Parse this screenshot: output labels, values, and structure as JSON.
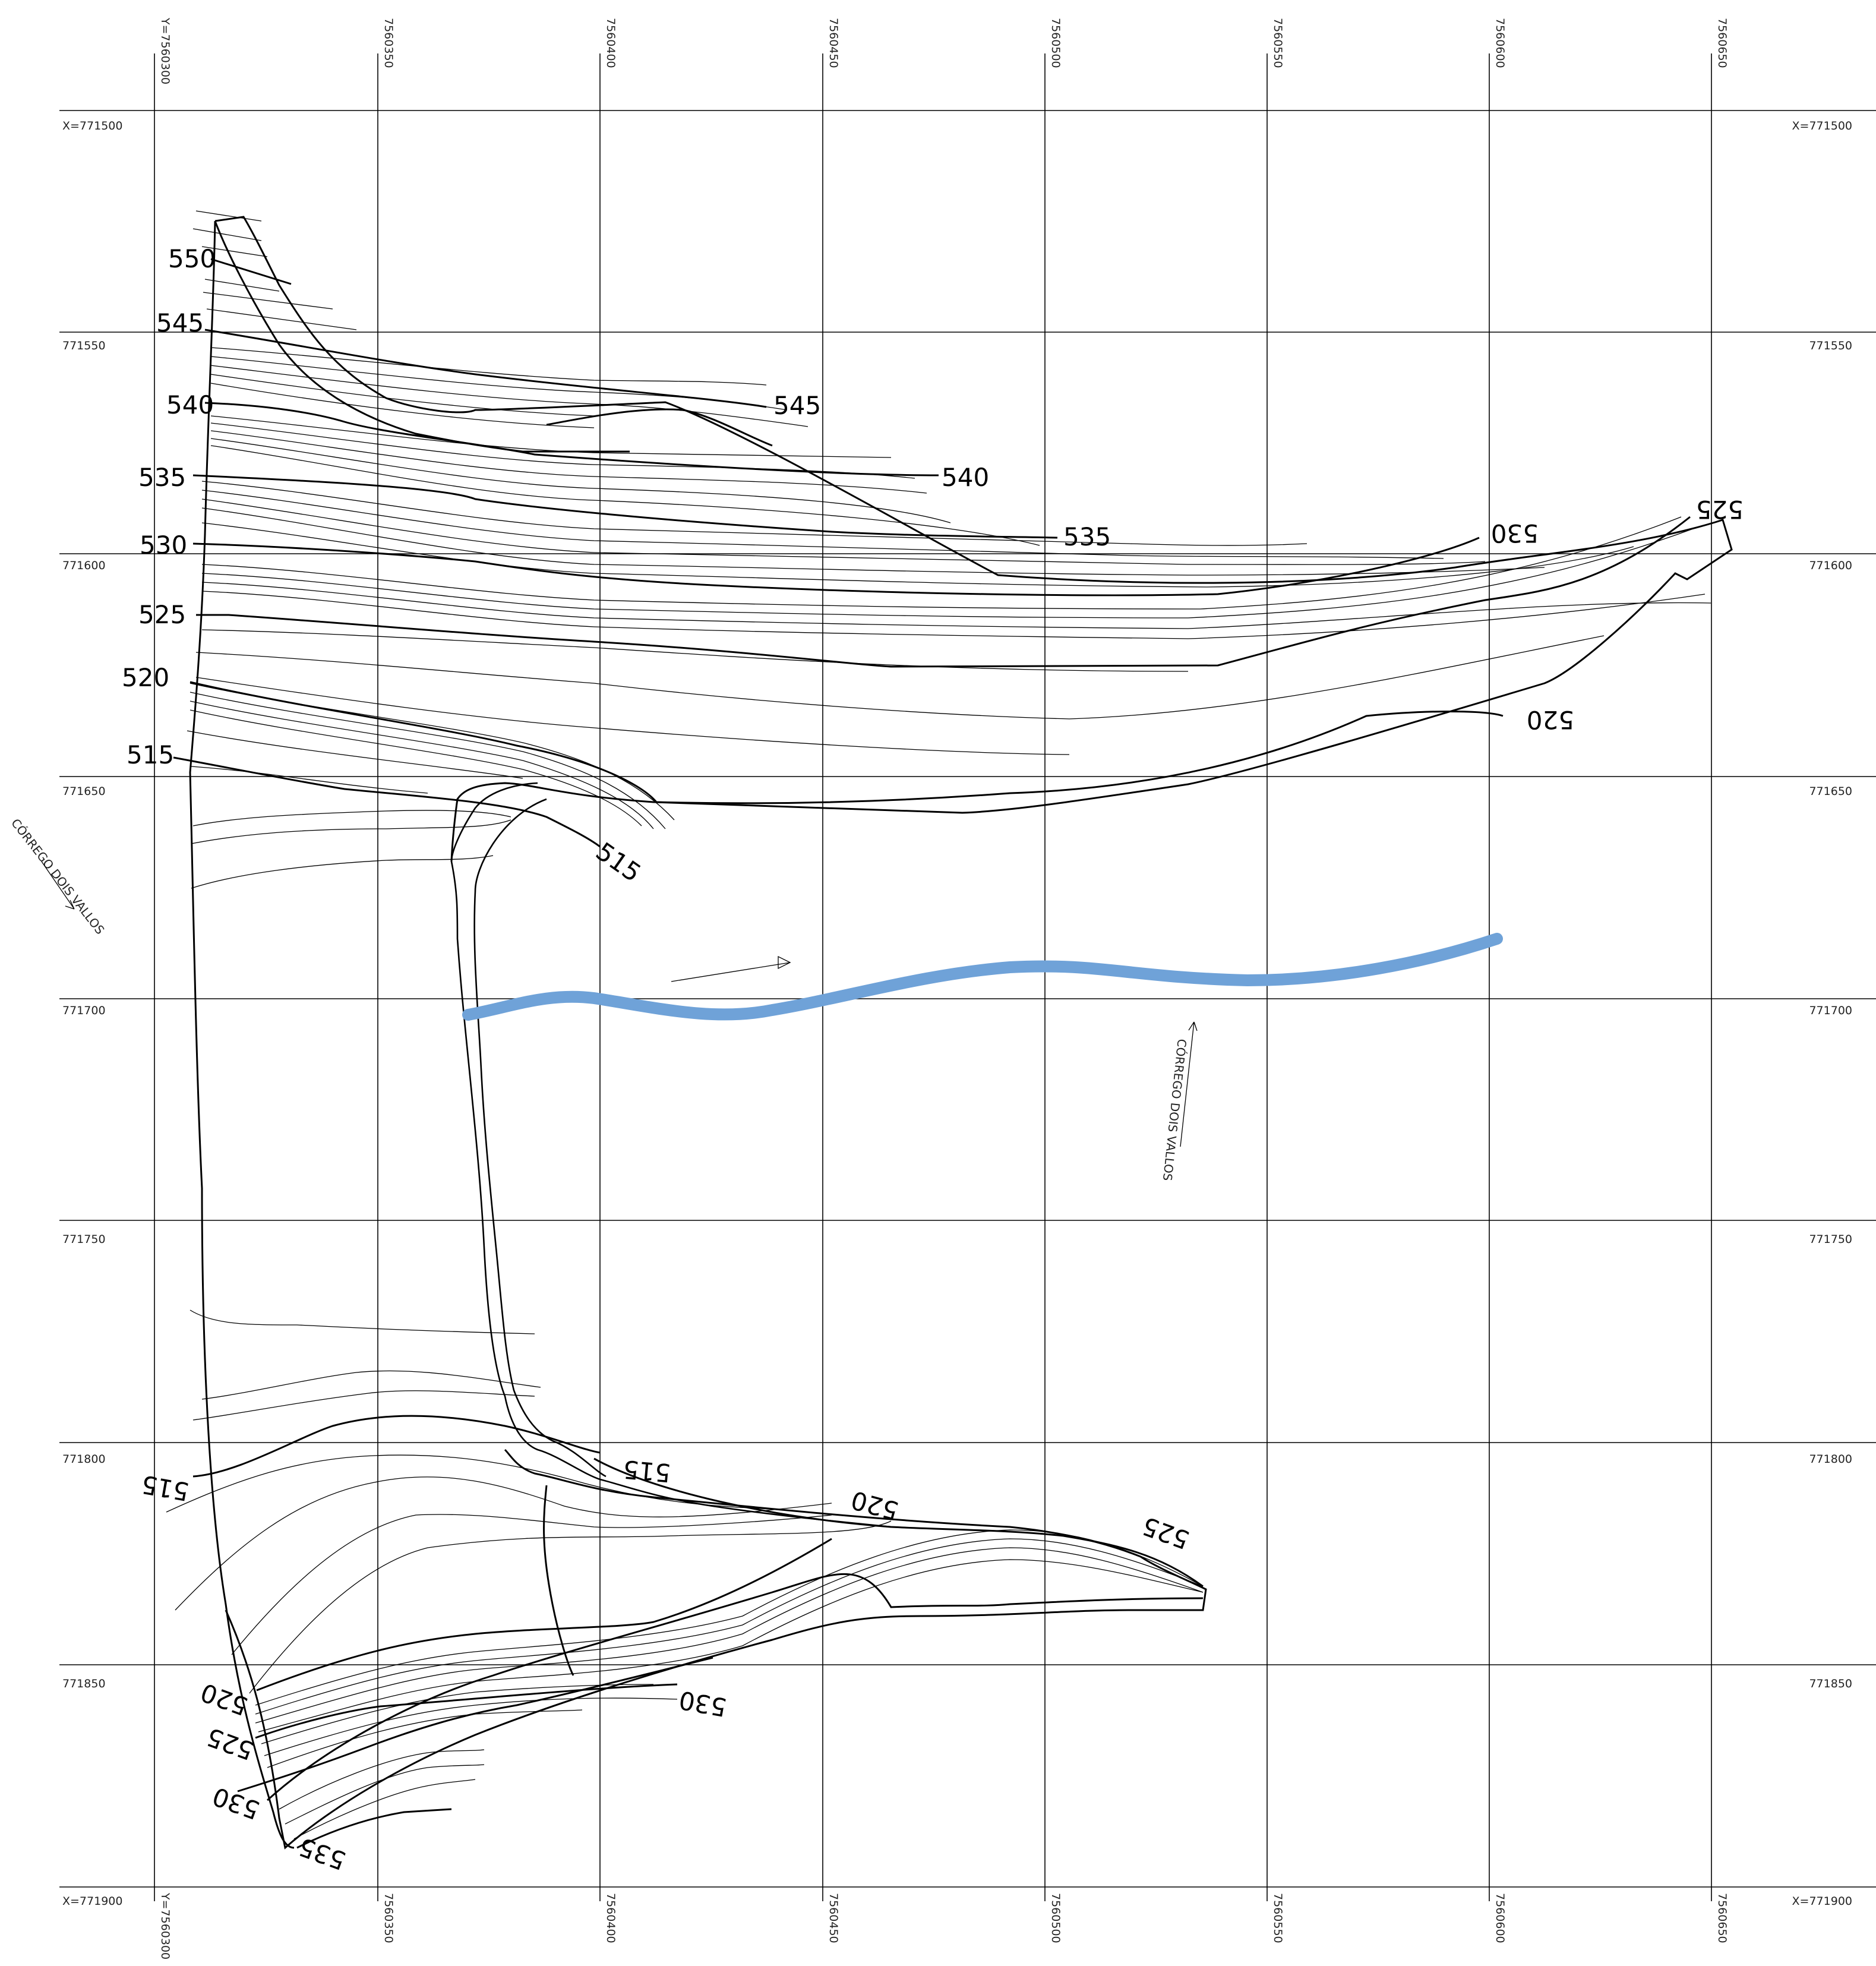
{
  "grid": {
    "x_labels": [
      "X=771500",
      "771550",
      "771600",
      "771650",
      "771700",
      "771750",
      "771800",
      "771850",
      "X=771900"
    ],
    "y_labels": [
      "Y=7560300",
      "7560350",
      "7560400",
      "7560450",
      "7560500",
      "7560550",
      "7560600",
      "7560650"
    ]
  },
  "contours": {
    "top": {
      "left_labels": [
        "550",
        "545",
        "540",
        "535",
        "530",
        "525",
        "520",
        "515"
      ],
      "right_labels": [
        "545",
        "540",
        "535",
        "530",
        "525",
        "520",
        "515"
      ]
    },
    "bottom": {
      "labels": [
        "515",
        "515",
        "520",
        "525",
        "520",
        "525",
        "530",
        "530",
        "535"
      ]
    }
  },
  "streams": {
    "label_1": "CÓRREGO DOIS VALLOS",
    "label_2": "CÓRREGO DOIS VALLOS"
  },
  "colors": {
    "river": "#6fa2d8",
    "lines": "#000000",
    "background": "#ffffff"
  }
}
